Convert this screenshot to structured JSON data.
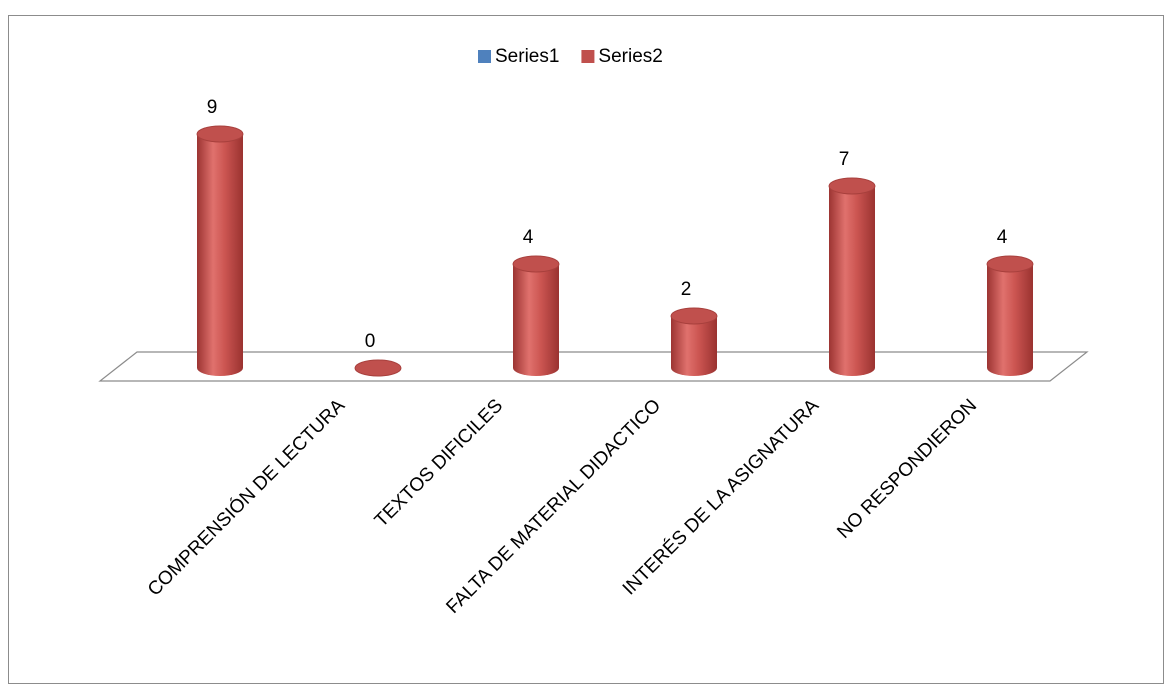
{
  "chart_data": {
    "type": "bar",
    "categories": [
      null,
      "COMPRENSIÓN DE LECTURA",
      "TEXTOS DIFICILES",
      "FALTA DE MATERIAL DIDACTICO",
      "INTERÉS DE LA ASIGNATURA",
      "NO RESPONDIERON"
    ],
    "series": [
      {
        "name": "Series1",
        "color": "#4f81bd",
        "values": [
          null,
          null,
          null,
          null,
          null,
          null
        ]
      },
      {
        "name": "Series2",
        "color": "#c0504d",
        "values": [
          9,
          0,
          4,
          2,
          7,
          4
        ]
      }
    ],
    "legend": "top"
  }
}
